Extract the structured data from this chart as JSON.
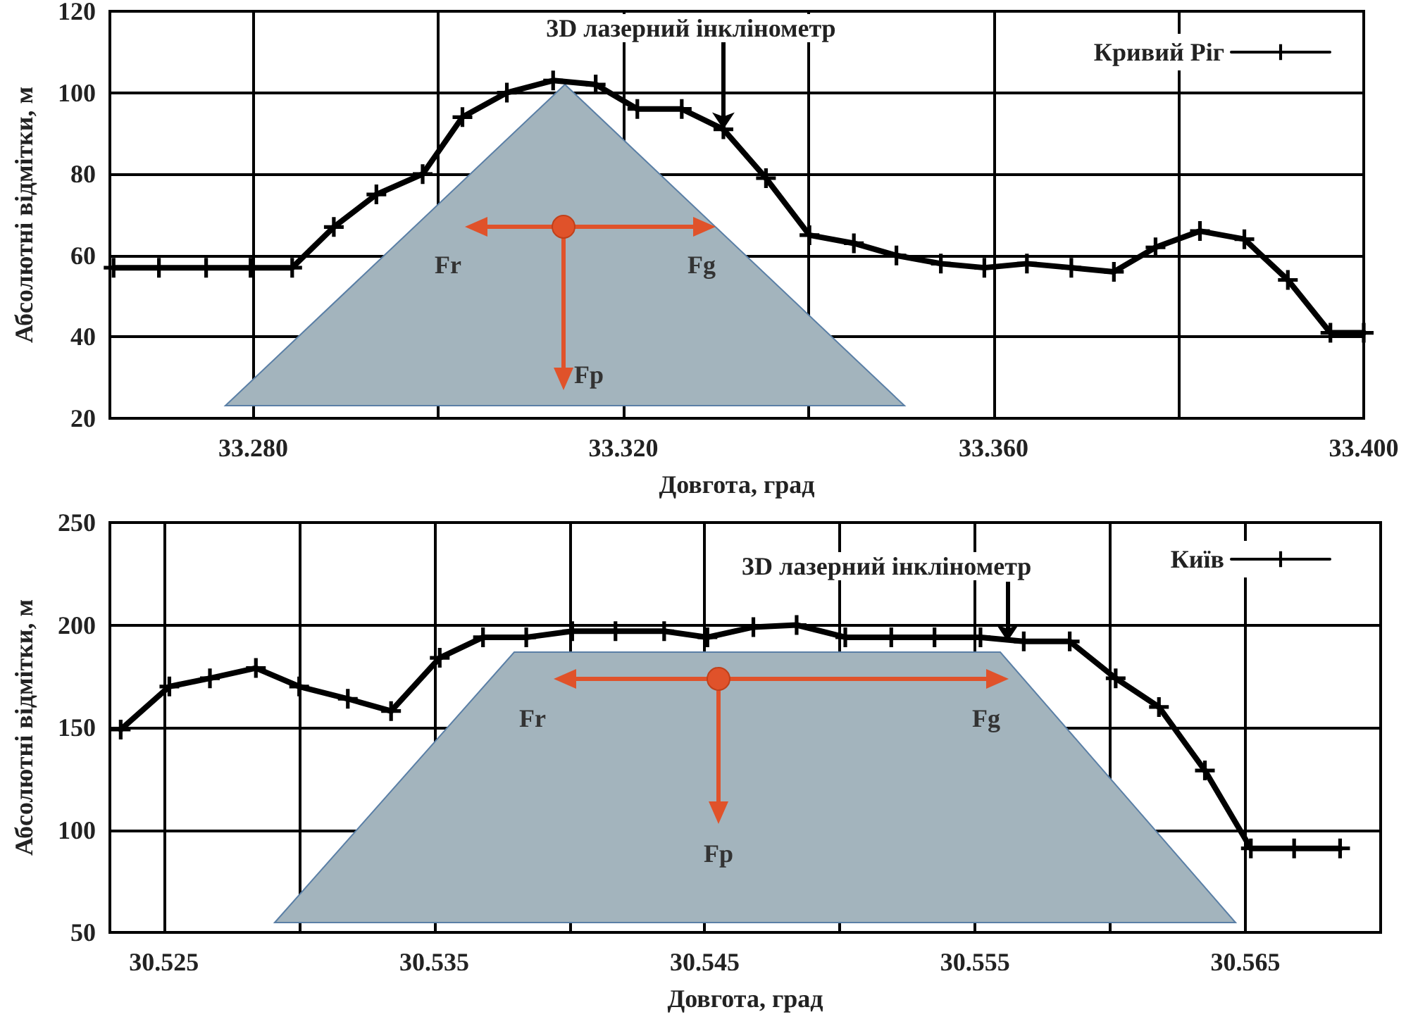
{
  "chart_data": [
    {
      "type": "line",
      "xlabel": "Довгота, град",
      "ylabel": "Абсолютні відмітки, м",
      "x": [
        33.2649,
        33.2698,
        33.2749,
        33.2797,
        33.2842,
        33.2887,
        33.2933,
        33.2983,
        33.3026,
        33.3074,
        33.3124,
        33.317,
        33.3215,
        33.3263,
        33.3308,
        33.3354,
        33.3401,
        33.3449,
        33.3495,
        33.3543,
        33.359,
        33.3636,
        33.3684,
        33.373,
        33.3775,
        33.3823,
        33.3871,
        33.3918,
        33.3964,
        33.4
      ],
      "series": [
        {
          "name": "Кривий Ріг",
          "color": "#000000",
          "values": [
            57,
            57,
            57,
            57,
            57,
            67,
            75,
            80,
            94,
            100,
            103,
            102,
            96,
            96,
            91,
            79,
            65,
            63,
            60,
            58,
            57,
            58,
            57,
            56,
            62,
            66,
            64,
            54,
            41,
            41
          ]
        }
      ],
      "xlim": [
        33.2645,
        33.4
      ],
      "ylim": [
        20,
        120
      ],
      "xticks": [
        {
          "value": 33.28,
          "label": "33.280"
        },
        {
          "value": 33.3,
          "label": null
        },
        {
          "value": 33.32,
          "label": "33.320"
        },
        {
          "value": 33.34,
          "label": null
        },
        {
          "value": 33.36,
          "label": "33.360"
        },
        {
          "value": 33.38,
          "label": null
        },
        {
          "value": 33.4,
          "label": "33.400"
        }
      ],
      "yticks": [
        20,
        40,
        60,
        80,
        100,
        120
      ],
      "grid": true,
      "legend": "top right",
      "marker": "cross",
      "annotations": [
        {
          "text": "3D лазерний інклінометр",
          "x": 33.3308,
          "y": 91
        },
        "Fr",
        "Fg",
        "Fp"
      ]
    },
    {
      "type": "line",
      "xlabel": "Довгота, град",
      "ylabel": "Абсолютні відмітки, м",
      "x": [
        30.5234,
        30.5252,
        30.5267,
        30.5284,
        30.53,
        30.5318,
        30.5334,
        30.5352,
        30.5368,
        30.5384,
        30.5401,
        30.5417,
        30.5435,
        30.5451,
        30.5468,
        30.5484,
        30.5502,
        30.5519,
        30.5535,
        30.5552,
        30.5568,
        30.5585,
        30.5602,
        30.5618,
        30.5635,
        30.5652,
        30.5668,
        30.5685
      ],
      "series": [
        {
          "name": "Київ",
          "color": "#000000",
          "values": [
            149,
            170,
            174,
            179,
            170,
            164,
            158,
            184,
            194,
            194,
            197,
            197,
            197,
            194,
            199,
            200,
            194,
            194,
            194,
            194,
            192,
            192,
            174,
            160,
            129,
            91,
            91,
            91
          ]
        }
      ],
      "xlim": [
        30.523,
        30.57
      ],
      "ylim": [
        50,
        250
      ],
      "xticks": [
        {
          "value": 30.525,
          "label": "30.525"
        },
        {
          "value": 30.53,
          "label": null
        },
        {
          "value": 30.535,
          "label": "30.535"
        },
        {
          "value": 30.54,
          "label": null
        },
        {
          "value": 30.545,
          "label": "30.545"
        },
        {
          "value": 30.55,
          "label": null
        },
        {
          "value": 30.555,
          "label": "30.555"
        },
        {
          "value": 30.56,
          "label": null
        },
        {
          "value": 30.565,
          "label": "30.565"
        }
      ],
      "yticks": [
        50,
        100,
        150,
        200,
        250
      ],
      "grid": true,
      "legend": "top right",
      "marker": "cross",
      "annotations": [
        {
          "text": "3D лазерний інклінометр",
          "x": 30.5562,
          "y": 192
        },
        "Fr",
        "Fg",
        "Fp"
      ]
    }
  ]
}
